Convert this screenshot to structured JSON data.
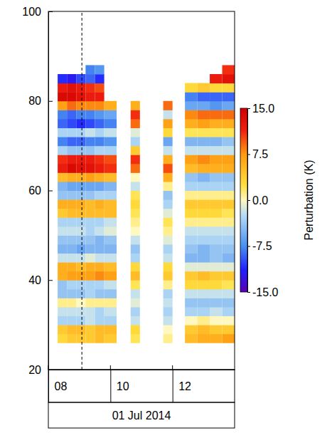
{
  "chart_data": {
    "type": "heatmap",
    "xlim": [
      8,
      14
    ],
    "xticks": [
      {
        "value": 8,
        "label": "08"
      },
      {
        "value": 10,
        "label": "10"
      },
      {
        "value": 12,
        "label": "12"
      }
    ],
    "ylim": [
      20,
      100
    ],
    "yticks": [
      20,
      40,
      60,
      80,
      100
    ],
    "date_label": "01 Jul 2014",
    "dashed_line_x": 9.08,
    "times": [
      [
        8.3,
        8.6
      ],
      [
        8.6,
        8.9
      ],
      [
        8.9,
        9.2
      ],
      [
        9.2,
        9.5
      ],
      [
        9.5,
        9.8
      ],
      [
        9.8,
        10.2
      ],
      [
        10.65,
        10.95
      ],
      [
        11.7,
        12.0
      ],
      [
        12.4,
        12.8
      ],
      [
        12.8,
        13.2
      ],
      [
        13.2,
        13.6
      ],
      [
        13.6,
        14.0
      ]
    ],
    "altitudes": [
      26,
      28,
      30,
      32,
      34,
      36,
      38,
      40,
      42,
      44,
      46,
      48,
      50,
      52,
      54,
      56,
      58,
      60,
      62,
      64,
      66,
      68,
      70,
      72,
      74,
      76,
      78,
      80,
      82,
      84,
      86,
      88
    ],
    "values": [
      [
        3,
        4,
        -3,
        -2,
        1,
        -4,
        -4,
        6,
        6,
        -2,
        -5,
        -4,
        -2,
        -3,
        4,
        6,
        -4,
        -5,
        5,
        12,
        11,
        -3,
        -8,
        -3,
        -9,
        -8,
        7,
        14,
        12,
        -11,
        null
      ],
      [
        4,
        5,
        -3,
        -2,
        1,
        -4,
        -3,
        7,
        6,
        -2,
        -5,
        -4,
        -2,
        -3,
        5,
        6,
        -4,
        -6,
        6,
        14,
        12,
        -4,
        -9,
        -3,
        -10,
        -9,
        9,
        14,
        13,
        -12,
        null
      ],
      [
        4,
        5,
        -3,
        -2,
        0,
        -4,
        -3,
        7,
        5,
        -2,
        -6,
        -4,
        -2,
        -3,
        5,
        6,
        -4,
        -6,
        6,
        13,
        12,
        -4,
        -9,
        -3,
        -11,
        -8,
        8,
        13,
        12,
        -10,
        null
      ],
      [
        4,
        4,
        -2,
        -2,
        1,
        -3,
        -3,
        7,
        6,
        -1,
        -5,
        -4,
        -3,
        -3,
        5,
        5,
        -4,
        -6,
        7,
        13,
        12,
        -4,
        -8,
        -2,
        -10,
        -8,
        8,
        12,
        11,
        -9,
        -8
      ],
      [
        5,
        5,
        -3,
        -3,
        1,
        -4,
        -3,
        8,
        6,
        -2,
        -5,
        -5,
        -2,
        -3,
        5,
        6,
        -3,
        -6,
        6,
        12,
        11,
        -3,
        -8,
        -3,
        -9,
        -7,
        8,
        12,
        10,
        -11,
        -7
      ],
      [
        4,
        5,
        -3,
        -2,
        1,
        -4,
        -2,
        7,
        5,
        -2,
        -5,
        -4,
        -1,
        -2,
        5,
        5,
        -3,
        -5,
        5,
        11,
        10,
        -3,
        -7,
        -2,
        -8,
        -6,
        6,
        null,
        null,
        null,
        null
      ],
      [
        2,
        3,
        -2,
        -3,
        -1,
        -2,
        2,
        5,
        3,
        -3,
        -4,
        -2,
        0,
        1,
        2,
        3,
        2,
        -2,
        0,
        9,
        11,
        4,
        -3,
        -1,
        9,
        11,
        6,
        null,
        null,
        null,
        null
      ],
      [
        1,
        0,
        -2,
        -3,
        -2,
        -3,
        1,
        4,
        3,
        -2,
        -3,
        -1,
        1,
        2,
        -1,
        -3,
        -4,
        1,
        6,
        10,
        6,
        -2,
        -6,
        3,
        7,
        -2,
        9,
        null,
        null,
        null,
        null
      ],
      [
        5,
        4,
        0,
        -3,
        -4,
        -2,
        3,
        4,
        -1,
        -5,
        -4,
        -3,
        -2,
        1,
        3,
        4,
        1,
        -3,
        -4,
        5,
        7,
        -2,
        -5,
        2,
        6,
        8,
        -6,
        -8,
        3,
        null,
        null
      ],
      [
        6,
        5,
        1,
        -3,
        -4,
        -2,
        3,
        5,
        -1,
        -5,
        -5,
        -3,
        -2,
        1,
        3,
        4,
        1,
        -3,
        -5,
        6,
        8,
        -2,
        -5,
        2,
        7,
        9,
        -6,
        -9,
        4,
        null,
        null
      ],
      [
        6,
        4,
        0,
        -2,
        -4,
        -2,
        3,
        4,
        -1,
        -4,
        -4,
        -3,
        -2,
        1,
        3,
        4,
        1,
        -3,
        -4,
        6,
        7,
        -2,
        -5,
        2,
        6,
        9,
        -7,
        -9,
        3,
        12,
        null
      ],
      [
        7,
        4,
        0,
        -3,
        -4,
        -2,
        2,
        4,
        -1,
        -5,
        -4,
        -3,
        -2,
        1,
        2,
        4,
        1,
        -3,
        -4,
        6,
        7,
        -2,
        -4,
        2,
        6,
        9,
        -6,
        -9,
        3,
        13,
        11
      ]
    ],
    "colorbar": {
      "title": "Perturbation (K)",
      "range": [
        -15,
        15
      ],
      "ticks": [
        {
          "value": 15,
          "label": "15.0"
        },
        {
          "value": 7.5,
          "label": "7.5"
        },
        {
          "value": 0,
          "label": "0.0"
        },
        {
          "value": -7.5,
          "label": "-7.5"
        },
        {
          "value": -15,
          "label": "-15.0"
        }
      ]
    }
  }
}
